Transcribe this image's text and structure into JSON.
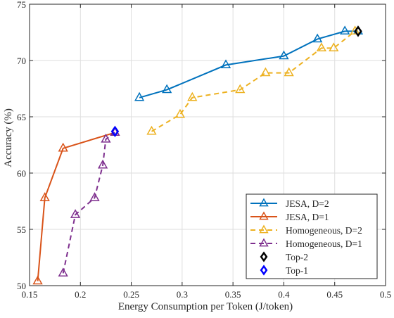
{
  "chart_data": {
    "type": "line",
    "xlabel": "Energy Consumption per Token (J/token)",
    "ylabel": "Accuracy (%)",
    "xlim": [
      0.15,
      0.5
    ],
    "ylim": [
      50,
      75
    ],
    "xticks": [
      0.15,
      0.2,
      0.25,
      0.3,
      0.35,
      0.4,
      0.45,
      0.5
    ],
    "yticks": [
      50,
      55,
      60,
      65,
      70,
      75
    ],
    "xtick_labels": [
      "0.15",
      "0.2",
      "0.25",
      "0.3",
      "0.35",
      "0.4",
      "0.45",
      "0.5"
    ],
    "ytick_labels": [
      "50",
      "55",
      "60",
      "65",
      "70",
      "75"
    ],
    "grid": true,
    "legend_position": "bottom-right",
    "series": [
      {
        "name": "JESA, D=2",
        "color": "#0072BD",
        "line": "solid",
        "marker": "triangle",
        "x": [
          0.258,
          0.285,
          0.343,
          0.4,
          0.433,
          0.46,
          0.473
        ],
        "y": [
          66.7,
          67.4,
          69.6,
          70.4,
          71.9,
          72.6,
          72.6
        ]
      },
      {
        "name": "JESA, D=1",
        "color": "#D95319",
        "line": "solid",
        "marker": "triangle",
        "x": [
          0.158,
          0.165,
          0.183,
          0.234
        ],
        "y": [
          50.4,
          57.8,
          62.2,
          63.6
        ]
      },
      {
        "name": "Homogeneous, D=2",
        "color": "#EDB120",
        "line": "dashed",
        "marker": "triangle",
        "x": [
          0.27,
          0.298,
          0.31,
          0.357,
          0.382,
          0.405,
          0.437,
          0.449,
          0.47
        ],
        "y": [
          63.7,
          65.2,
          66.7,
          67.4,
          68.9,
          68.9,
          71.1,
          71.1,
          72.6
        ]
      },
      {
        "name": "Homogeneous, D=1",
        "color": "#7E2F8E",
        "line": "dashed",
        "marker": "triangle",
        "x": [
          0.183,
          0.195,
          0.214,
          0.222,
          0.225,
          0.234
        ],
        "y": [
          51.1,
          56.3,
          57.8,
          60.7,
          63.0,
          63.6
        ]
      },
      {
        "name": "Top-2",
        "color": "#000000",
        "line": "none",
        "marker": "diamond",
        "x": [
          0.473
        ],
        "y": [
          72.6
        ]
      },
      {
        "name": "Top-1",
        "color": "#0000FF",
        "line": "none",
        "marker": "diamond",
        "x": [
          0.234
        ],
        "y": [
          63.7
        ]
      }
    ]
  }
}
